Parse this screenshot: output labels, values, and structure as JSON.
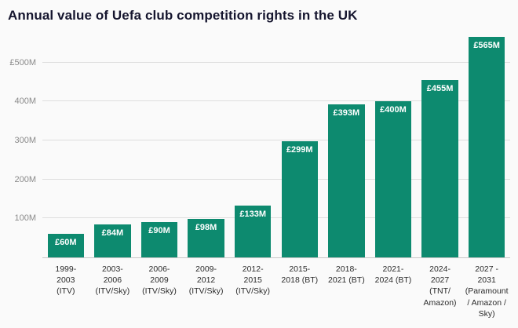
{
  "title": "Annual value of Uefa club competition rights in the UK",
  "colors": {
    "bar": "#0d8a6f",
    "background": "#fafafa",
    "title_text": "#15152e",
    "gridline": "#dedede",
    "axis_tick_text": "#8a8a8a",
    "value_label_text": "#ffffff",
    "x_label_text": "#2b2b2b"
  },
  "chart_data": {
    "type": "bar",
    "title": "Annual value of Uefa club competition rights in the UK",
    "categories": [
      "1999-2003 (ITV)",
      "2003-2006 (ITV/Sky)",
      "2006-2009 (ITV/Sky)",
      "2009-2012 (ITV/Sky)",
      "2012-2015 (ITV/Sky)",
      "2015-2018 (BT)",
      "2018-2021 (BT)",
      "2021-2024 (BT)",
      "2024-2027 (TNT/Amazon)",
      "2027 - 2031 (Paramount / Amazon / Sky)"
    ],
    "category_label_lines": [
      [
        "1999-",
        "2003",
        "(ITV)"
      ],
      [
        "2003-",
        "2006",
        "(ITV/Sky)"
      ],
      [
        "2006-",
        "2009",
        "(ITV/Sky)"
      ],
      [
        "2009-",
        "2012",
        "(ITV/Sky)"
      ],
      [
        "2012-",
        "2015",
        "(ITV/Sky)"
      ],
      [
        "2015-",
        "2018 (BT)"
      ],
      [
        "2018-",
        "2021 (BT)"
      ],
      [
        "2021-",
        "2024 (BT)"
      ],
      [
        "2024-",
        "2027",
        "(TNT/",
        "Amazon)"
      ],
      [
        "2027 -",
        "2031",
        "(Paramount",
        "/ Amazon /",
        "Sky)"
      ]
    ],
    "values": [
      60,
      84,
      90,
      98,
      133,
      299,
      393,
      400,
      455,
      565
    ],
    "value_labels": [
      "£60M",
      "£84M",
      "£90M",
      "£98M",
      "£133M",
      "£299M",
      "£393M",
      "£400M",
      "£455M",
      "£565M"
    ],
    "xlabel": "",
    "ylabel": "",
    "ylim": [
      0,
      580
    ],
    "yticks": [
      {
        "value": 100,
        "label": "100M"
      },
      {
        "value": 200,
        "label": "200M"
      },
      {
        "value": 300,
        "label": "300M"
      },
      {
        "value": 400,
        "label": "400M"
      },
      {
        "value": 500,
        "label": "£500M"
      }
    ],
    "grid": true,
    "legend": "none"
  }
}
